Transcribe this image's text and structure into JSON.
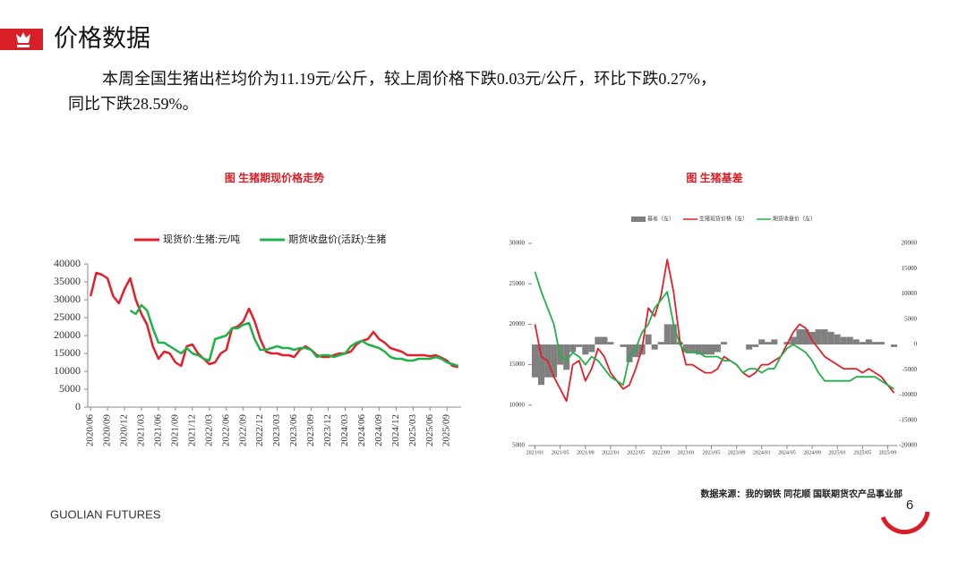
{
  "slide_title": "价格数据",
  "body_text": [
    "本周全国生猪出栏均价为11.19元/公斤，较上周价格下跌0.03元/公斤，环比下跌0.27%，",
    "同比下跌28.59%。"
  ],
  "source": "数据来源：我的钢铁 同花顺 国联期货农产品事业部",
  "brand": "GUOLIAN FUTURES",
  "page_number": "6",
  "chart_data": [
    {
      "type": "line",
      "title": "图 生猪期现价格走势",
      "x": [
        "2020/06",
        "2020/07",
        "2020/08",
        "2020/09",
        "2020/10",
        "2020/11",
        "2020/12",
        "2021/01",
        "2021/02",
        "2021/03",
        "2021/04",
        "2021/05",
        "2021/06",
        "2021/07",
        "2021/08",
        "2021/09",
        "2021/10",
        "2021/11",
        "2021/12",
        "2022/01",
        "2022/02",
        "2022/03",
        "2022/04",
        "2022/05",
        "2022/06",
        "2022/07",
        "2022/08",
        "2022/09",
        "2022/10",
        "2022/11",
        "2022/12",
        "2023/01",
        "2023/02",
        "2023/03",
        "2023/04",
        "2023/05",
        "2023/06",
        "2023/07",
        "2023/08",
        "2023/09",
        "2023/10",
        "2023/11",
        "2023/12",
        "2024/01",
        "2024/02",
        "2024/03",
        "2024/04",
        "2024/05",
        "2024/06",
        "2024/07",
        "2024/08",
        "2024/09",
        "2024/10",
        "2024/11",
        "2024/12",
        "2025/01",
        "2025/02",
        "2025/03",
        "2025/04",
        "2025/05",
        "2025/06",
        "2025/07",
        "2025/08",
        "2025/09",
        "2025/10",
        "2025/11"
      ],
      "xticks": [
        "2020/06",
        "2020/09",
        "2020/12",
        "2021/03",
        "2021/06",
        "2021/09",
        "2021/12",
        "2022/03",
        "2022/06",
        "2022/09",
        "2022/12",
        "2023/03",
        "2023/06",
        "2023/09",
        "2023/12",
        "2024/03",
        "2024/06",
        "2024/09",
        "2024/12",
        "2025/03",
        "2025/06",
        "2025/09"
      ],
      "series": [
        {
          "name": "现货价:生猪:元/吨",
          "color": "#e0202a",
          "values": [
            31000,
            37500,
            37000,
            36000,
            31000,
            29000,
            33000,
            36000,
            30000,
            26000,
            23000,
            17000,
            13500,
            15500,
            15000,
            12500,
            11500,
            17000,
            17500,
            15000,
            13500,
            12000,
            12500,
            15000,
            16000,
            22000,
            22500,
            24000,
            27500,
            24000,
            19000,
            15500,
            15000,
            15000,
            14500,
            14500,
            14000,
            16000,
            17000,
            16000,
            14500,
            14000,
            14000,
            14500,
            15000,
            15000,
            15500,
            17500,
            18500,
            19000,
            21000,
            19000,
            18000,
            16500,
            16000,
            15500,
            14500,
            14500,
            14500,
            14500,
            14200,
            14500,
            13800,
            13000,
            11500,
            11200
          ]
        },
        {
          "name": "期货收盘价(活跃):生猪",
          "color": "#22b04b",
          "values": [
            null,
            null,
            null,
            null,
            null,
            null,
            null,
            27000,
            26000,
            28500,
            27000,
            22000,
            18000,
            18000,
            17000,
            16000,
            15000,
            16500,
            15000,
            14500,
            13500,
            13000,
            19000,
            19500,
            20000,
            22000,
            22000,
            23000,
            23500,
            19000,
            16000,
            16000,
            16500,
            17000,
            16500,
            16500,
            16000,
            16500,
            16500,
            16000,
            14000,
            14500,
            14500,
            14000,
            14500,
            15000,
            17000,
            18000,
            18500,
            17500,
            17000,
            16500,
            15500,
            14000,
            13500,
            13500,
            13000,
            13000,
            13500,
            13500,
            13500,
            14000,
            13500,
            12500,
            12000,
            11500
          ]
        }
      ],
      "ylim": [
        0,
        40000
      ],
      "yticks": [
        0,
        5000,
        10000,
        15000,
        20000,
        25000,
        30000,
        35000,
        40000
      ]
    },
    {
      "type": "basis",
      "title": "图 生猪基差",
      "x": [
        "2021/01",
        "2021/02",
        "2021/03",
        "2021/04",
        "2021/05",
        "2021/06",
        "2021/07",
        "2021/08",
        "2021/09",
        "2021/10",
        "2021/11",
        "2021/12",
        "2022/01",
        "2022/02",
        "2022/03",
        "2022/04",
        "2022/05",
        "2022/06",
        "2022/07",
        "2022/08",
        "2022/09",
        "2022/10",
        "2022/11",
        "2022/12",
        "2023/01",
        "2023/02",
        "2023/03",
        "2023/04",
        "2023/05",
        "2023/06",
        "2023/07",
        "2023/08",
        "2023/09",
        "2023/10",
        "2023/11",
        "2023/12",
        "2024/01",
        "2024/02",
        "2024/03",
        "2024/04",
        "2024/05",
        "2024/06",
        "2024/07",
        "2024/08",
        "2024/09",
        "2024/10",
        "2024/11",
        "2024/12",
        "2025/01",
        "2025/02",
        "2025/03",
        "2025/04",
        "2025/05",
        "2025/06",
        "2025/07",
        "2025/08",
        "2025/09",
        "2025/10"
      ],
      "xticks": [
        "2021/01",
        "2021/05",
        "2021/09",
        "2022/01",
        "2022/05",
        "2022/09",
        "2023/01",
        "2023/05",
        "2023/09",
        "2024/01",
        "2024/05",
        "2024/09",
        "2025/01",
        "2025/05",
        "2025/09"
      ],
      "series": [
        {
          "name": "基差（左）",
          "color": "#808080",
          "axis": "y2",
          "values": [
            -6500,
            -8000,
            -6500,
            -6500,
            -4000,
            -5000,
            -1500,
            -500,
            -2000,
            -1500,
            1500,
            1500,
            500,
            0,
            -500,
            -3500,
            -2500,
            -2000,
            2000,
            -1000,
            500,
            4000,
            4000,
            500,
            -1500,
            -1500,
            -2000,
            -2000,
            -2000,
            -1500,
            500,
            0,
            0,
            0,
            -1000,
            -500,
            1000,
            500,
            1000,
            0,
            500,
            1500,
            3000,
            3000,
            2500,
            3000,
            3000,
            2500,
            2000,
            1500,
            1500,
            1000,
            500,
            1000,
            500,
            500,
            0,
            -500
          ]
        },
        {
          "name": "生猪现货价格（左）",
          "color": "#e0202a",
          "values": [
            20000,
            16000,
            15500,
            13500,
            12000,
            10500,
            15000,
            15500,
            13000,
            14500,
            17000,
            16000,
            14000,
            13000,
            12000,
            12500,
            14500,
            17000,
            22000,
            21000,
            23500,
            28000,
            24000,
            18000,
            15000,
            15000,
            14500,
            14000,
            14000,
            14500,
            16000,
            15500,
            15000,
            14000,
            13500,
            14000,
            15000,
            15000,
            15500,
            16000,
            17500,
            19000,
            20000,
            19500,
            18000,
            17000,
            16000,
            15500,
            15000,
            14500,
            14500,
            14500,
            14000,
            14500,
            14000,
            13500,
            12500,
            11500
          ]
        },
        {
          "name": "期货收盘价（左）",
          "color": "#22b04b",
          "values": [
            26500,
            24000,
            22000,
            20000,
            16000,
            15500,
            16500,
            16000,
            15000,
            16000,
            15500,
            14500,
            13500,
            13000,
            12500,
            16000,
            17000,
            19000,
            20000,
            22000,
            23000,
            24000,
            20000,
            17500,
            16500,
            16500,
            16500,
            16000,
            16000,
            16000,
            15500,
            15500,
            15000,
            14000,
            14500,
            14500,
            14000,
            14500,
            14500,
            16000,
            17000,
            17500,
            17000,
            16500,
            15500,
            14000,
            13000,
            13000,
            13000,
            13000,
            13000,
            13500,
            13500,
            13500,
            13500,
            13000,
            12500,
            12000
          ]
        }
      ],
      "ylim": [
        5000,
        30000
      ],
      "yticks": [
        5000,
        10000,
        15000,
        20000,
        25000,
        30000
      ],
      "y2lim": [
        -20000,
        20000
      ],
      "y2ticks": [
        -20000,
        -15000,
        -10000,
        -5000,
        0,
        5000,
        10000,
        15000,
        20000
      ]
    }
  ]
}
